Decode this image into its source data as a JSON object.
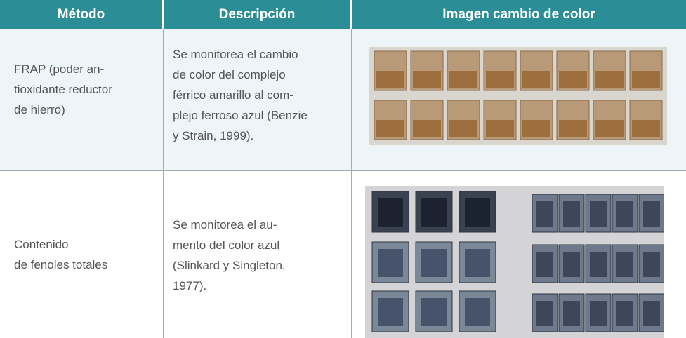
{
  "table": {
    "header": [
      "Método",
      "Descripción",
      "Imagen cambio de color"
    ],
    "rows": [
      {
        "method": [
          "FRAP (poder an-",
          "tioxidante reductor",
          "de hierro)"
        ],
        "description": [
          "Se monitorea el cambio",
          "de color del complejo",
          "férrico amarillo al com-",
          "plejo ferroso azul (Benzie",
          "y Strain, 1999)."
        ]
      },
      {
        "method": [
          "Contenido",
          "de fenoles totales"
        ],
        "description": [
          "Se monitorea el au-",
          "mento del color azul",
          "(Slinkard y Singleton,",
          "1977)."
        ]
      }
    ]
  }
}
